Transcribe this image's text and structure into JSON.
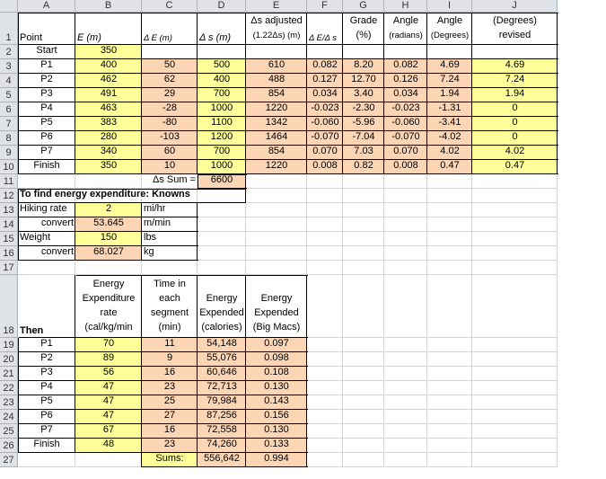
{
  "cols": [
    "A",
    "B",
    "C",
    "D",
    "E",
    "F",
    "G",
    "H",
    "I",
    "J"
  ],
  "rows": [
    "1",
    "2",
    "3",
    "4",
    "5",
    "6",
    "7",
    "8",
    "9",
    "10",
    "11",
    "12",
    "13",
    "14",
    "15",
    "16",
    "17",
    "18",
    "19",
    "20",
    "21",
    "22",
    "23",
    "24",
    "25",
    "26",
    "27"
  ],
  "header": {
    "point": "Point",
    "e": "E (m)",
    "de": "Δ E (m)",
    "ds": "Δ s (m)",
    "ds_adj_1": "Δs adjusted",
    "ds_adj_2": "(1.22Δs) (m)",
    "de_ds": "Δ E/Δ s",
    "grade_1": "Grade",
    "grade_2": "(%)",
    "angle_rad_1": "Angle",
    "angle_rad_2": "(radians)",
    "angle_deg_1": "Angle",
    "angle_deg_2": "(Degrees)",
    "revised_1": "(Degrees)",
    "revised_2": "revised"
  },
  "start": {
    "label": "Start",
    "e": "350"
  },
  "table": [
    {
      "point": "P1",
      "e": "400",
      "de": "50",
      "ds": "500",
      "dsadj": "610",
      "ratio": "0.082",
      "grade": "8.20",
      "rad": "0.082",
      "deg": "4.69",
      "rev": "4.69"
    },
    {
      "point": "P2",
      "e": "462",
      "de": "62",
      "ds": "400",
      "dsadj": "488",
      "ratio": "0.127",
      "grade": "12.70",
      "rad": "0.126",
      "deg": "7.24",
      "rev": "7.24"
    },
    {
      "point": "P3",
      "e": "491",
      "de": "29",
      "ds": "700",
      "dsadj": "854",
      "ratio": "0.034",
      "grade": "3.40",
      "rad": "0.034",
      "deg": "1.94",
      "rev": "1.94"
    },
    {
      "point": "P4",
      "e": "463",
      "de": "-28",
      "ds": "1000",
      "dsadj": "1220",
      "ratio": "-0.023",
      "grade": "-2.30",
      "rad": "-0.023",
      "deg": "-1.31",
      "rev": "0"
    },
    {
      "point": "P5",
      "e": "383",
      "de": "-80",
      "ds": "1100",
      "dsadj": "1342",
      "ratio": "-0.060",
      "grade": "-5.96",
      "rad": "-0.060",
      "deg": "-3.41",
      "rev": "0"
    },
    {
      "point": "P6",
      "e": "280",
      "de": "-103",
      "ds": "1200",
      "dsadj": "1464",
      "ratio": "-0.070",
      "grade": "-7.04",
      "rad": "-0.070",
      "deg": "-4.02",
      "rev": "0"
    },
    {
      "point": "P7",
      "e": "340",
      "de": "60",
      "ds": "700",
      "dsadj": "854",
      "ratio": "0.070",
      "grade": "7.03",
      "rad": "0.070",
      "deg": "4.02",
      "rev": "4.02"
    },
    {
      "point": "Finish",
      "e": "350",
      "de": "10",
      "ds": "1000",
      "dsadj": "1220",
      "ratio": "0.008",
      "grade": "0.82",
      "rad": "0.008",
      "deg": "0.47",
      "rev": "0.47"
    }
  ],
  "ds_sum": {
    "label": "Δs Sum =",
    "value": "6600"
  },
  "knowns": {
    "title": "To find energy expenditure: Knowns",
    "hiking_rate_label": "Hiking rate",
    "hiking_rate_value": "2",
    "hiking_rate_unit": "mi/hr",
    "convert1_label": "convert",
    "convert1_value": "53.645",
    "convert1_unit": "m/min",
    "weight_label": "Weight",
    "weight_value": "150",
    "weight_unit": "lbs",
    "convert2_label": "convert",
    "convert2_value": "68.027",
    "convert2_unit": "kg"
  },
  "energy_header": {
    "then": "Then",
    "rate": "Energy\nExpenditure\nrate\n(cal/kg/min",
    "time": "Time in\neach\nsegment\n(min)",
    "expended_cal": "Energy\nExpended\n(calories)",
    "expended_bm": "Energy\nExpended\n(Big Macs)"
  },
  "energy": [
    {
      "point": "P1",
      "rate": "70",
      "time": "11",
      "cal": "54,148",
      "bm": "0.097"
    },
    {
      "point": "P2",
      "rate": "89",
      "time": "9",
      "cal": "55,076",
      "bm": "0.098"
    },
    {
      "point": "P3",
      "rate": "56",
      "time": "16",
      "cal": "60,646",
      "bm": "0.108"
    },
    {
      "point": "P4",
      "rate": "47",
      "time": "23",
      "cal": "72,713",
      "bm": "0.130"
    },
    {
      "point": "P5",
      "rate": "47",
      "time": "25",
      "cal": "79,984",
      "bm": "0.143"
    },
    {
      "point": "P6",
      "rate": "47",
      "time": "27",
      "cal": "87,256",
      "bm": "0.156"
    },
    {
      "point": "P7",
      "rate": "67",
      "time": "16",
      "cal": "72,558",
      "bm": "0.130"
    },
    {
      "point": "Finish",
      "rate": "48",
      "time": "23",
      "cal": "74,260",
      "bm": "0.133"
    }
  ],
  "sums": {
    "label": "Sums:",
    "cal": "556,642",
    "bm": "0.994"
  }
}
